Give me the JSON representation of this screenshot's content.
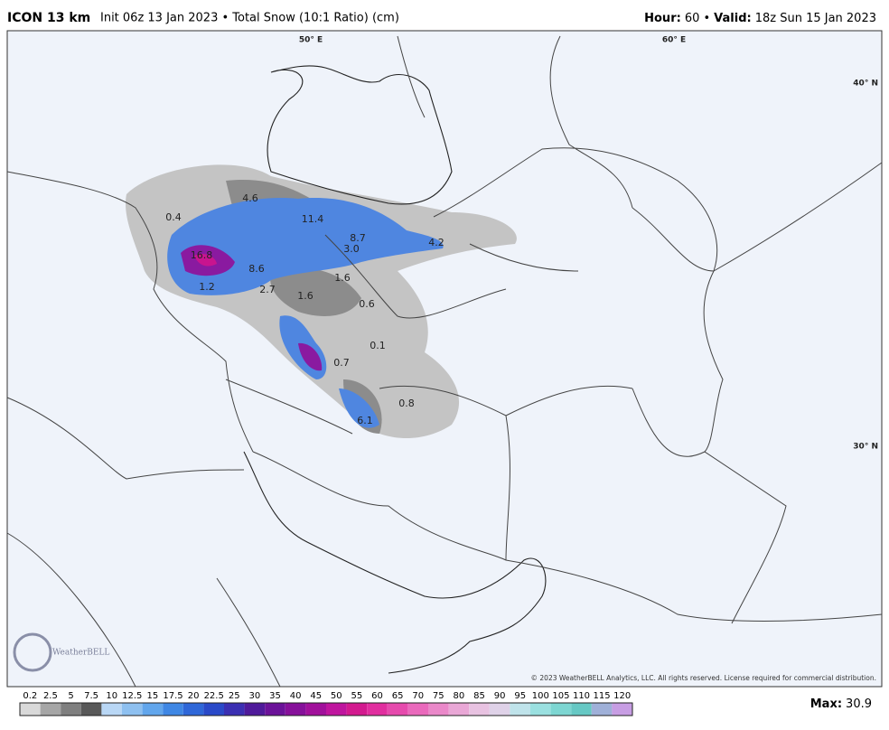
{
  "header": {
    "model": "ICON 13 km",
    "description": "Init 06z 13 Jan 2023 • Total Snow (10:1 Ratio) (cm)",
    "hour_label": "Hour:",
    "hour": "60 •",
    "valid_label": "Valid:",
    "valid": "18z Sun 15 Jan 2023"
  },
  "map": {
    "grid_labels": [
      "50° E",
      "60° E",
      "40° N",
      "30° N"
    ],
    "labels": [
      "0.4",
      "4.6",
      "11.4",
      "8.7",
      "3.0",
      "4.2",
      "16.8",
      "8.6",
      "1.2",
      "2.7",
      "1.6",
      "1.6",
      "0.6",
      "0.1",
      "0.7",
      "0.8",
      "6.1"
    ],
    "logo": "WeatherBELL",
    "copyright": "© 2023 WeatherBELL Analytics, LLC. All rights reserved. License required for commercial distribution."
  },
  "legend": {
    "ticks": [
      0.2,
      2.5,
      5,
      7.5,
      10,
      12.5,
      15,
      17.5,
      20,
      22.5,
      25,
      30,
      35,
      40,
      45,
      50,
      55,
      60,
      65,
      70,
      75,
      80,
      85,
      90,
      95,
      100,
      105,
      110,
      115,
      120
    ],
    "colors": [
      "#d9d9d9",
      "#a6a6a6",
      "#7f7f7f",
      "#595959",
      "#b9d7f5",
      "#8ec0f0",
      "#62a6ec",
      "#3f87e4",
      "#2f67d8",
      "#2a49c8",
      "#3b2fb2",
      "#4f1a9a",
      "#6b1299",
      "#86109a",
      "#a1109b",
      "#bf159e",
      "#d31a8f",
      "#e12e9f",
      "#e64aad",
      "#ea69bc",
      "#ea88c9",
      "#e9a7d6",
      "#e8c2e1",
      "#dfd2e8",
      "#bfe3ea",
      "#9ae0e0",
      "#7dd6d2",
      "#66c8c4",
      "#9fb0d8",
      "#c79de3"
    ],
    "max_label": "Max:",
    "max_value": 30.9
  }
}
